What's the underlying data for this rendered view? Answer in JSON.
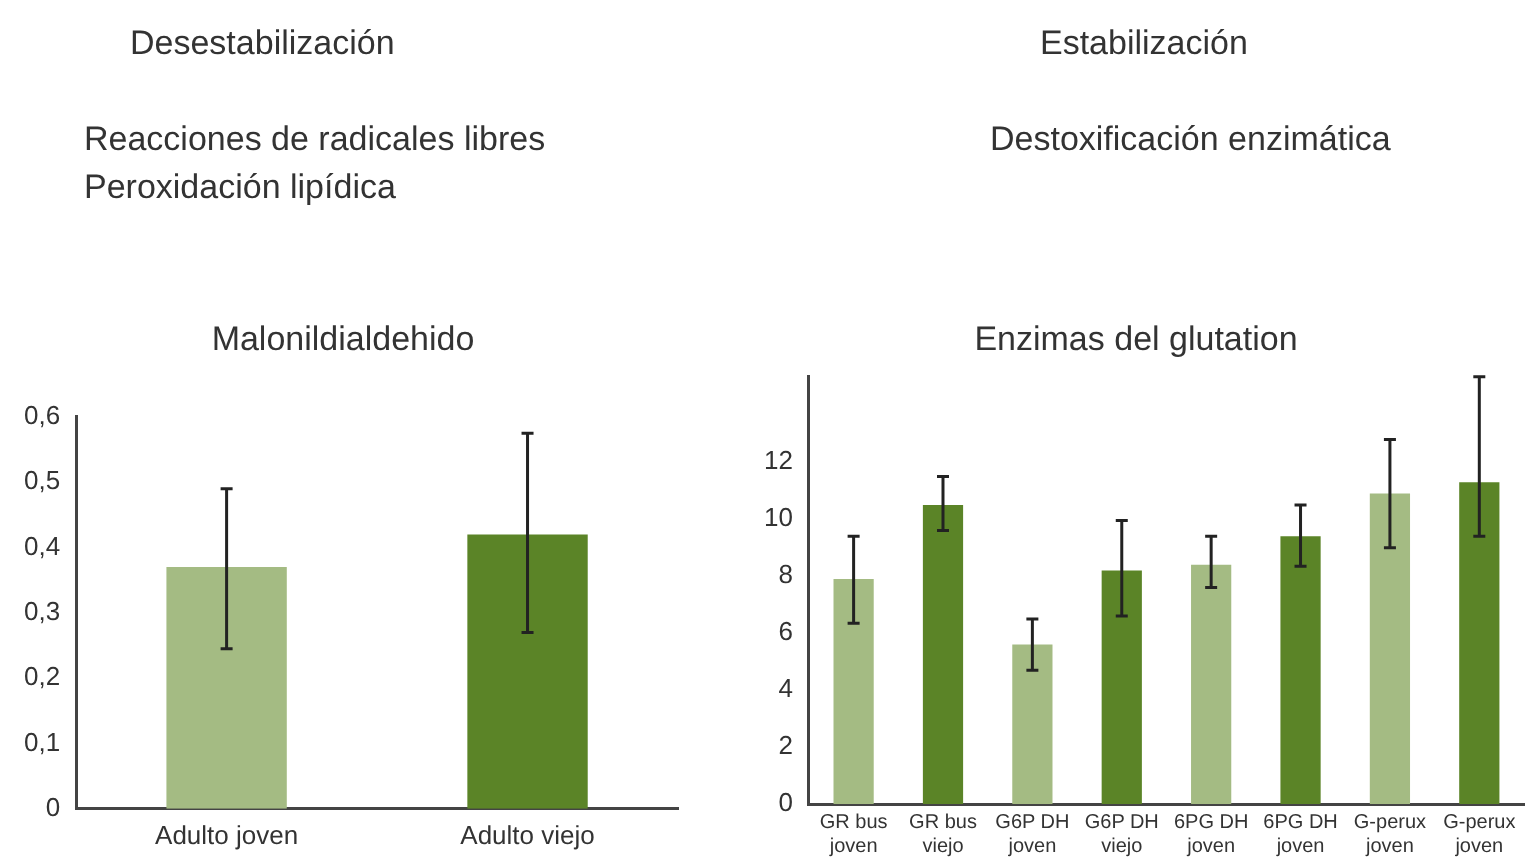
{
  "chart_data": [
    {
      "type": "bar",
      "title": "Malonildialdehido",
      "annotations": [
        "Desestabilización",
        "Reacciones de radicales libres",
        "Peroxidación lipídica"
      ],
      "categories": [
        "Adulto joven",
        "Adulto viejo"
      ],
      "values": [
        0.37,
        0.42
      ],
      "colors": [
        "#a4bb83",
        "#5b8427"
      ],
      "errors": [
        [
          0.245,
          0.49
        ],
        [
          0.27,
          0.575
        ]
      ],
      "ylim": [
        0,
        0.6
      ],
      "yticks": [
        0,
        {
          "value": 0.1,
          "label": "0,1"
        },
        {
          "value": 0.2,
          "label": "0,2"
        },
        {
          "value": 0.3,
          "label": "0,3"
        },
        {
          "value": 0.4,
          "label": "0,4"
        },
        {
          "value": 0.5,
          "label": "0,5"
        },
        {
          "value": 0.6,
          "label": "0,6"
        }
      ],
      "grid": false
    },
    {
      "type": "bar",
      "title": "Enzimas del glutation",
      "annotations": [
        "Estabilización",
        "Destoxificación enzimática"
      ],
      "categories": [
        "GR bus joven",
        "GR bus viejo",
        "G6P DH joven",
        "G6P DH viejo",
        "6PG DH joven",
        "6PG DH joven",
        "G-perux joven",
        "G-perux joven"
      ],
      "values": [
        7.9,
        10.5,
        5.6,
        8.2,
        8.4,
        9.4,
        10.9,
        11.3
      ],
      "colors": [
        "#a4bb83",
        "#5b8427",
        "#a4bb83",
        "#5b8427",
        "#a4bb83",
        "#5b8427",
        "#a4bb83",
        "#5b8427"
      ],
      "errors": [
        [
          6.35,
          9.4
        ],
        [
          9.6,
          11.5
        ],
        [
          4.7,
          6.5
        ],
        [
          6.6,
          9.95
        ],
        [
          7.6,
          9.4
        ],
        [
          8.35,
          10.5
        ],
        [
          9.0,
          12.8
        ],
        [
          9.4,
          15.0
        ]
      ],
      "ylim": [
        0,
        15
      ],
      "yticks": [
        0,
        2,
        4,
        6,
        8,
        10,
        12
      ],
      "grid": false
    }
  ]
}
